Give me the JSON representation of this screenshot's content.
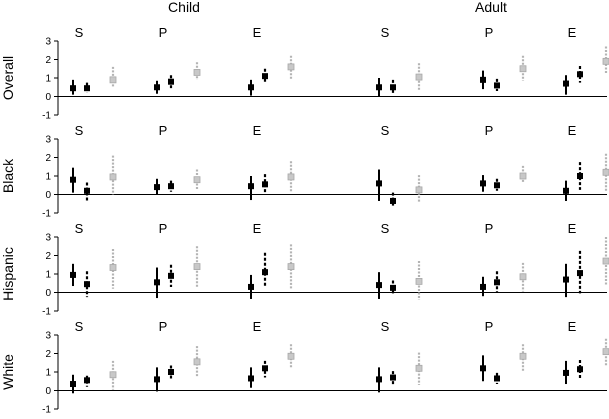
{
  "chart_data": {
    "type": "forest",
    "column_headers": [
      "Child",
      "Adult"
    ],
    "row_labels": [
      "Overall",
      "Black",
      "Hispanic",
      "White"
    ],
    "group_labels": [
      "S",
      "P",
      "E"
    ],
    "ylim": [
      -1,
      3
    ],
    "yticks": [
      -1,
      0,
      1,
      2,
      3
    ],
    "reference_line": 0,
    "series_styles": [
      {
        "color": "#000000",
        "marker": "filled-square",
        "line": "solid"
      },
      {
        "color": "#000000",
        "marker": "filled-square",
        "line": "dashed"
      },
      {
        "color": "#b4b4b4",
        "marker": "gray-square",
        "line": "dotted"
      }
    ],
    "panels": [
      {
        "row": "Overall",
        "Child": [
          [
            [
              0.45,
              0.1,
              0.9
            ],
            [
              0.45,
              0.2,
              0.75
            ],
            [
              0.9,
              0.5,
              1.6
            ]
          ],
          [
            [
              0.5,
              0.15,
              0.85
            ],
            [
              0.8,
              0.45,
              1.15
            ],
            [
              1.3,
              0.9,
              1.85
            ]
          ],
          [
            [
              0.5,
              0.05,
              0.9
            ],
            [
              1.1,
              0.7,
              1.5
            ],
            [
              1.6,
              0.9,
              2.2
            ]
          ]
        ],
        "Adult": [
          [
            [
              0.5,
              0.0,
              1.0
            ],
            [
              0.5,
              0.1,
              0.9
            ],
            [
              1.05,
              0.3,
              1.8
            ]
          ],
          [
            [
              0.9,
              0.4,
              1.4
            ],
            [
              0.6,
              0.3,
              0.95
            ],
            [
              1.5,
              0.85,
              2.2
            ]
          ],
          [
            [
              0.7,
              0.1,
              1.15
            ],
            [
              1.2,
              0.75,
              1.65
            ],
            [
              1.9,
              1.2,
              2.7
            ]
          ]
        ]
      },
      {
        "row": "Black",
        "Child": [
          [
            [
              0.8,
              0.1,
              1.45
            ],
            [
              0.2,
              -0.4,
              0.65
            ],
            [
              0.95,
              0.0,
              2.1
            ]
          ],
          [
            [
              0.4,
              0.0,
              0.85
            ],
            [
              0.45,
              0.15,
              0.75
            ],
            [
              0.8,
              0.3,
              1.35
            ]
          ],
          [
            [
              0.45,
              -0.3,
              1.0
            ],
            [
              0.55,
              0.1,
              1.1
            ],
            [
              0.95,
              0.15,
              1.8
            ]
          ]
        ],
        "Adult": [
          [
            [
              0.6,
              -0.35,
              1.35
            ],
            [
              -0.35,
              -0.65,
              0.1
            ],
            [
              0.25,
              -0.45,
              1.05
            ]
          ],
          [
            [
              0.6,
              0.15,
              1.05
            ],
            [
              0.5,
              0.2,
              0.85
            ],
            [
              1.0,
              0.6,
              1.55
            ]
          ],
          [
            [
              0.2,
              -0.35,
              0.75
            ],
            [
              1.0,
              0.25,
              1.75
            ],
            [
              1.2,
              0.2,
              2.2
            ]
          ]
        ]
      },
      {
        "row": "Hispanic",
        "Child": [
          [
            [
              0.95,
              0.35,
              1.55
            ],
            [
              0.45,
              -0.25,
              1.15
            ],
            [
              1.35,
              0.2,
              2.35
            ]
          ],
          [
            [
              0.55,
              -0.3,
              1.35
            ],
            [
              0.9,
              0.3,
              1.5
            ],
            [
              1.4,
              0.3,
              2.5
            ]
          ],
          [
            [
              0.3,
              -0.35,
              0.95
            ],
            [
              1.1,
              0.3,
              2.15
            ],
            [
              1.4,
              0.2,
              2.6
            ]
          ]
        ],
        "Adult": [
          [
            [
              0.4,
              -0.35,
              1.1
            ],
            [
              0.25,
              -0.05,
              0.65
            ],
            [
              0.6,
              -0.4,
              1.7
            ]
          ],
          [
            [
              0.3,
              -0.2,
              0.85
            ],
            [
              0.55,
              0.0,
              1.15
            ],
            [
              0.85,
              0.05,
              1.6
            ]
          ],
          [
            [
              0.7,
              -0.25,
              1.55
            ],
            [
              1.05,
              -0.05,
              2.25
            ],
            [
              1.7,
              0.4,
              3.0
            ]
          ]
        ]
      },
      {
        "row": "White",
        "Child": [
          [
            [
              0.35,
              -0.15,
              0.85
            ],
            [
              0.55,
              0.2,
              0.8
            ],
            [
              0.85,
              0.05,
              1.6
            ]
          ],
          [
            [
              0.6,
              -0.05,
              1.25
            ],
            [
              1.0,
              0.6,
              1.35
            ],
            [
              1.55,
              0.75,
              2.4
            ]
          ],
          [
            [
              0.65,
              0.15,
              1.25
            ],
            [
              1.2,
              0.7,
              1.6
            ],
            [
              1.85,
              1.25,
              2.5
            ]
          ]
        ],
        "Adult": [
          [
            [
              0.6,
              -0.1,
              1.25
            ],
            [
              0.7,
              0.3,
              1.05
            ],
            [
              1.2,
              0.3,
              2.05
            ]
          ],
          [
            [
              1.2,
              0.5,
              1.9
            ],
            [
              0.65,
              0.35,
              0.95
            ],
            [
              1.85,
              1.0,
              2.5
            ]
          ],
          [
            [
              0.95,
              0.35,
              1.6
            ],
            [
              1.15,
              0.6,
              1.65
            ],
            [
              2.1,
              1.3,
              2.8
            ]
          ]
        ]
      }
    ]
  }
}
